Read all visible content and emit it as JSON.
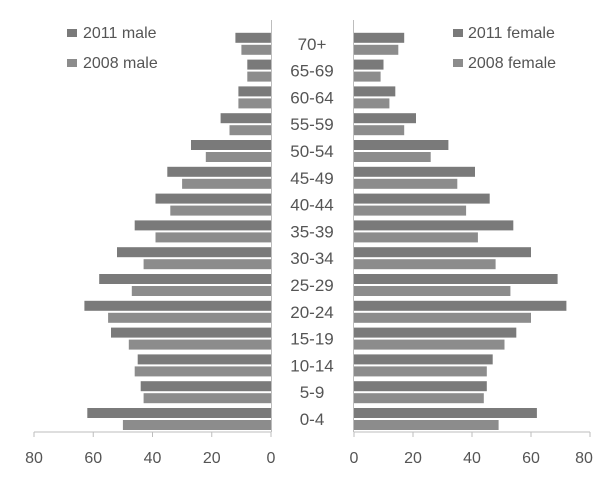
{
  "chart_data": {
    "type": "bar",
    "orientation": "horizontal",
    "subtype": "population-pyramid",
    "title": "",
    "categories": [
      "0-4",
      "5-9",
      "10-14",
      "15-19",
      "20-24",
      "25-29",
      "30-34",
      "35-39",
      "40-44",
      "45-49",
      "50-54",
      "55-59",
      "60-64",
      "65-69",
      "70+"
    ],
    "series": [
      {
        "name": "2011 male",
        "side": "left",
        "values": [
          62,
          44,
          45,
          54,
          63,
          58,
          52,
          46,
          39,
          35,
          27,
          17,
          11,
          8,
          12
        ],
        "color": "#7a7a7a"
      },
      {
        "name": "2008 male",
        "side": "left",
        "values": [
          50,
          43,
          46,
          48,
          55,
          47,
          43,
          39,
          34,
          30,
          22,
          14,
          11,
          8,
          10
        ],
        "color": "#8c8c8c"
      },
      {
        "name": "2011 female",
        "side": "right",
        "values": [
          62,
          45,
          47,
          55,
          72,
          69,
          60,
          54,
          46,
          41,
          32,
          21,
          14,
          10,
          17
        ],
        "color": "#7a7a7a"
      },
      {
        "name": "2008 female",
        "side": "right",
        "values": [
          49,
          44,
          45,
          51,
          60,
          53,
          48,
          42,
          38,
          35,
          26,
          17,
          12,
          9,
          15
        ],
        "color": "#8c8c8c"
      }
    ],
    "left_axis": {
      "ticks": [
        "80",
        "60",
        "40",
        "20",
        "0"
      ],
      "xlim": [
        0,
        80
      ]
    },
    "right_axis": {
      "ticks": [
        "0",
        "20",
        "40",
        "60",
        "80"
      ],
      "xlim": [
        0,
        80
      ]
    },
    "legend": {
      "male_position": "top-left",
      "female_position": "top-right"
    },
    "grid": false
  }
}
